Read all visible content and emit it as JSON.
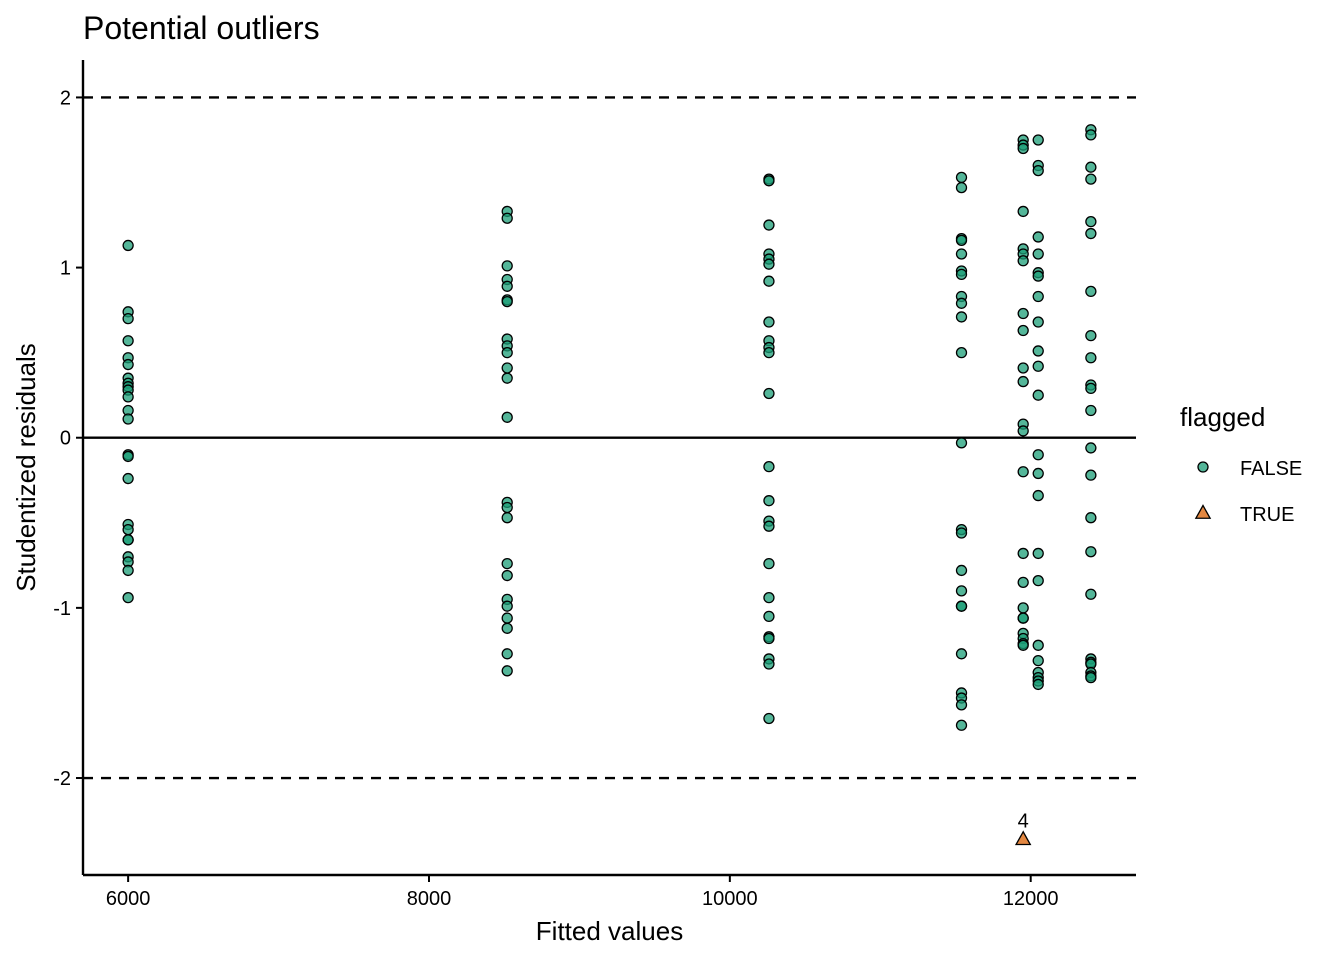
{
  "chart_data": {
    "type": "scatter",
    "title": "Potential outliers",
    "xlabel": "Fitted values",
    "ylabel": "Studentized residuals",
    "xlim": [
      5700,
      12700
    ],
    "ylim": [
      -2.57,
      2.22
    ],
    "xticks": [
      6000,
      8000,
      10000,
      12000
    ],
    "xtick_labels": [
      "6000",
      "8000",
      "10000",
      "12000"
    ],
    "yticks": [
      2,
      1,
      0,
      -1,
      -2
    ],
    "ytick_labels": [
      "2",
      "1",
      "0",
      "-1",
      "-2"
    ],
    "grid": false,
    "reference_lines": [
      {
        "y": 2,
        "style": "dashed"
      },
      {
        "y": 0,
        "style": "solid"
      },
      {
        "y": -2,
        "style": "dashed"
      }
    ],
    "legend": {
      "title": "flagged",
      "placement": "right",
      "entries": [
        {
          "label": "FALSE",
          "shape": "circle",
          "color": "#1b9e77"
        },
        {
          "label": "TRUE",
          "shape": "triangle",
          "color": "#d95f02"
        }
      ]
    },
    "series": [
      {
        "name": "FALSE",
        "shape": "circle",
        "color": "#1b9e77",
        "points": [
          [
            6000,
            1.13
          ],
          [
            6000,
            0.74
          ],
          [
            6000,
            0.7
          ],
          [
            6000,
            0.57
          ],
          [
            6000,
            0.47
          ],
          [
            6000,
            0.43
          ],
          [
            6000,
            0.35
          ],
          [
            6000,
            0.32
          ],
          [
            6000,
            0.3
          ],
          [
            6000,
            0.28
          ],
          [
            6000,
            0.24
          ],
          [
            6000,
            0.16
          ],
          [
            6000,
            0.11
          ],
          [
            6000,
            -0.1
          ],
          [
            6000,
            -0.11
          ],
          [
            6000,
            -0.24
          ],
          [
            6000,
            -0.51
          ],
          [
            6000,
            -0.54
          ],
          [
            6000,
            -0.6
          ],
          [
            6000,
            -0.6
          ],
          [
            6000,
            -0.7
          ],
          [
            6000,
            -0.73
          ],
          [
            6000,
            -0.78
          ],
          [
            6000,
            -0.94
          ],
          [
            8520,
            1.33
          ],
          [
            8520,
            1.29
          ],
          [
            8520,
            1.01
          ],
          [
            8520,
            0.93
          ],
          [
            8520,
            0.89
          ],
          [
            8520,
            0.81
          ],
          [
            8520,
            0.8
          ],
          [
            8520,
            0.58
          ],
          [
            8520,
            0.54
          ],
          [
            8520,
            0.5
          ],
          [
            8520,
            0.41
          ],
          [
            8520,
            0.35
          ],
          [
            8520,
            0.12
          ],
          [
            8520,
            -0.38
          ],
          [
            8520,
            -0.41
          ],
          [
            8520,
            -0.47
          ],
          [
            8520,
            -0.74
          ],
          [
            8520,
            -0.81
          ],
          [
            8520,
            -0.95
          ],
          [
            8520,
            -0.99
          ],
          [
            8520,
            -1.06
          ],
          [
            8520,
            -1.12
          ],
          [
            8520,
            -1.27
          ],
          [
            8520,
            -1.37
          ],
          [
            10260,
            1.52
          ],
          [
            10260,
            1.51
          ],
          [
            10260,
            1.25
          ],
          [
            10260,
            1.08
          ],
          [
            10260,
            1.05
          ],
          [
            10260,
            1.02
          ],
          [
            10260,
            0.92
          ],
          [
            10260,
            0.68
          ],
          [
            10260,
            0.57
          ],
          [
            10260,
            0.53
          ],
          [
            10260,
            0.5
          ],
          [
            10260,
            0.26
          ],
          [
            10260,
            -0.17
          ],
          [
            10260,
            -0.37
          ],
          [
            10260,
            -0.49
          ],
          [
            10260,
            -0.52
          ],
          [
            10260,
            -0.74
          ],
          [
            10260,
            -0.94
          ],
          [
            10260,
            -1.05
          ],
          [
            10260,
            -1.17
          ],
          [
            10260,
            -1.18
          ],
          [
            10260,
            -1.3
          ],
          [
            10260,
            -1.33
          ],
          [
            10260,
            -1.65
          ],
          [
            11540,
            1.53
          ],
          [
            11540,
            1.47
          ],
          [
            11540,
            1.17
          ],
          [
            11540,
            1.16
          ],
          [
            11540,
            1.08
          ],
          [
            11540,
            0.98
          ],
          [
            11540,
            0.96
          ],
          [
            11540,
            0.83
          ],
          [
            11540,
            0.79
          ],
          [
            11540,
            0.71
          ],
          [
            11540,
            0.5
          ],
          [
            11540,
            -0.03
          ],
          [
            11540,
            -0.54
          ],
          [
            11540,
            -0.56
          ],
          [
            11540,
            -0.78
          ],
          [
            11540,
            -0.9
          ],
          [
            11540,
            -0.99
          ],
          [
            11540,
            -0.99
          ],
          [
            11540,
            -1.27
          ],
          [
            11540,
            -1.5
          ],
          [
            11540,
            -1.53
          ],
          [
            11540,
            -1.57
          ],
          [
            11540,
            -1.69
          ],
          [
            11950,
            1.75
          ],
          [
            11950,
            1.72
          ],
          [
            11950,
            1.7
          ],
          [
            11950,
            1.33
          ],
          [
            11950,
            1.11
          ],
          [
            11950,
            1.08
          ],
          [
            11950,
            1.04
          ],
          [
            11950,
            0.73
          ],
          [
            11950,
            0.63
          ],
          [
            11950,
            0.41
          ],
          [
            11950,
            0.33
          ],
          [
            11950,
            0.08
          ],
          [
            11950,
            0.04
          ],
          [
            11950,
            -0.2
          ],
          [
            11950,
            -0.68
          ],
          [
            11950,
            -0.85
          ],
          [
            11950,
            -1.0
          ],
          [
            11950,
            -1.06
          ],
          [
            11950,
            -1.06
          ],
          [
            11950,
            -1.15
          ],
          [
            11950,
            -1.18
          ],
          [
            11950,
            -1.21
          ],
          [
            11950,
            -1.22
          ],
          [
            12050,
            1.75
          ],
          [
            12050,
            1.6
          ],
          [
            12050,
            1.57
          ],
          [
            12050,
            1.18
          ],
          [
            12050,
            1.08
          ],
          [
            12050,
            0.97
          ],
          [
            12050,
            0.95
          ],
          [
            12050,
            0.83
          ],
          [
            12050,
            0.68
          ],
          [
            12050,
            0.51
          ],
          [
            12050,
            0.42
          ],
          [
            12050,
            0.25
          ],
          [
            12050,
            -0.1
          ],
          [
            12050,
            -0.21
          ],
          [
            12050,
            -0.34
          ],
          [
            12050,
            -0.68
          ],
          [
            12050,
            -0.84
          ],
          [
            12050,
            -1.22
          ],
          [
            12050,
            -1.31
          ],
          [
            12050,
            -1.38
          ],
          [
            12050,
            -1.41
          ],
          [
            12050,
            -1.43
          ],
          [
            12050,
            -1.45
          ],
          [
            12400,
            1.81
          ],
          [
            12400,
            1.78
          ],
          [
            12400,
            1.59
          ],
          [
            12400,
            1.52
          ],
          [
            12400,
            1.27
          ],
          [
            12400,
            1.2
          ],
          [
            12400,
            0.86
          ],
          [
            12400,
            0.6
          ],
          [
            12400,
            0.47
          ],
          [
            12400,
            0.31
          ],
          [
            12400,
            0.29
          ],
          [
            12400,
            0.16
          ],
          [
            12400,
            -0.06
          ],
          [
            12400,
            -0.22
          ],
          [
            12400,
            -0.47
          ],
          [
            12400,
            -0.67
          ],
          [
            12400,
            -0.92
          ],
          [
            12400,
            -1.3
          ],
          [
            12400,
            -1.32
          ],
          [
            12400,
            -1.33
          ],
          [
            12400,
            -1.38
          ],
          [
            12400,
            -1.4
          ],
          [
            12400,
            -1.41
          ]
        ]
      },
      {
        "name": "TRUE",
        "shape": "triangle",
        "color": "#d95f02",
        "points": [
          [
            11950,
            -2.36
          ]
        ],
        "labels": [
          "4"
        ]
      }
    ]
  }
}
